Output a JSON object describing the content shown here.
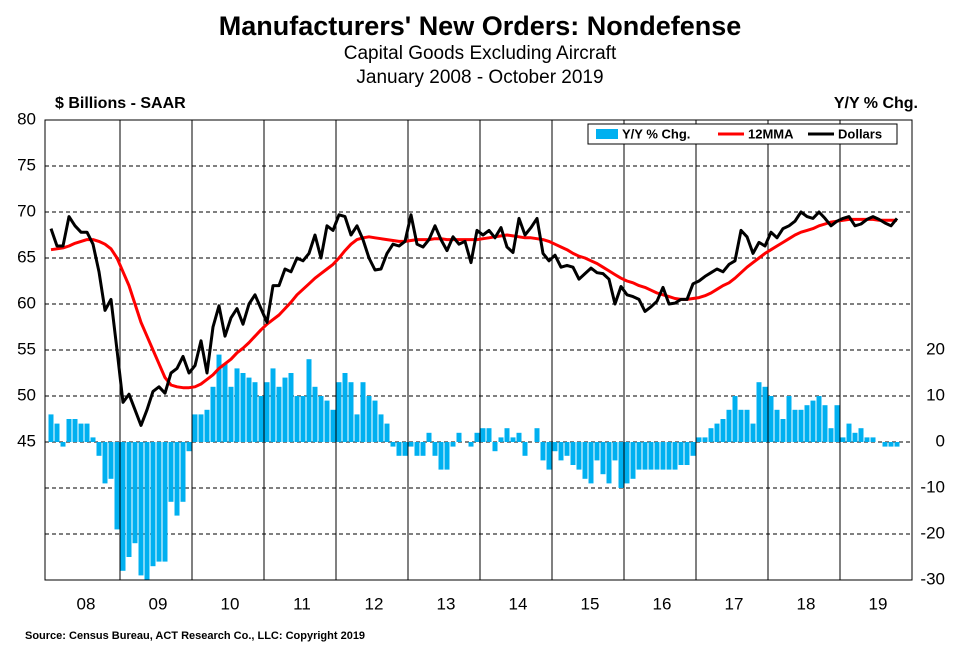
{
  "chart_data": {
    "type": "combo",
    "title": "Manufacturers' New Orders: Nondefense",
    "subtitle": "Capital Goods Excluding  Aircraft",
    "period": "January 2008 - October 2019",
    "ylabel": "$ Billions - SAAR",
    "y2label": "Y/Y % Chg.",
    "source": "Source: Census Bureau, ACT Research Co., LLC: Copyright 2019",
    "legend": "upper right",
    "grid": true,
    "ylim": [
      30,
      80
    ],
    "yticks": [
      45,
      50,
      55,
      60,
      65,
      70,
      75,
      80
    ],
    "y2lim": [
      -30,
      70
    ],
    "y2ticks": [
      -30,
      -20,
      -10,
      0,
      10,
      20
    ],
    "categories": [
      null,
      null,
      null,
      null,
      null,
      null,
      "08",
      null,
      null,
      null,
      null,
      null,
      null,
      null,
      null,
      null,
      null,
      null,
      "09",
      null,
      null,
      null,
      null,
      null,
      null,
      null,
      null,
      null,
      null,
      null,
      "10",
      null,
      null,
      null,
      null,
      null,
      null,
      null,
      null,
      null,
      null,
      null,
      "11",
      null,
      null,
      null,
      null,
      null,
      null,
      null,
      null,
      null,
      null,
      null,
      "12",
      null,
      null,
      null,
      null,
      null,
      null,
      null,
      null,
      null,
      null,
      null,
      "13",
      null,
      null,
      null,
      null,
      null,
      null,
      null,
      null,
      null,
      null,
      null,
      "14",
      null,
      null,
      null,
      null,
      null,
      null,
      null,
      null,
      null,
      null,
      null,
      "15",
      null,
      null,
      null,
      null,
      null,
      null,
      null,
      null,
      null,
      null,
      null,
      "16",
      null,
      null,
      null,
      null,
      null,
      null,
      null,
      null,
      null,
      null,
      null,
      "17",
      null,
      null,
      null,
      null,
      null,
      null,
      null,
      null,
      null,
      null,
      null,
      "18",
      null,
      null,
      null,
      null,
      null,
      null,
      null,
      null,
      null,
      null,
      null,
      "19",
      null,
      null,
      null
    ],
    "series": [
      {
        "name": "Y/Y % Chg.",
        "type": "bar",
        "axis": "y2",
        "color": "#00b0f0",
        "values": [
          6,
          4,
          -1,
          5,
          5,
          4,
          4,
          1,
          -3,
          -9,
          -8,
          -19,
          -28,
          -25,
          -22,
          -29,
          -30,
          -27,
          -26,
          -26,
          -13,
          -16,
          -13,
          -2,
          6,
          6,
          7,
          12,
          19,
          17,
          12,
          16,
          15,
          14,
          13,
          10,
          13,
          16,
          12,
          14,
          15,
          10,
          10,
          18,
          12,
          10,
          9,
          7,
          13,
          15,
          13,
          6,
          13,
          10,
          9,
          6,
          4,
          -1,
          -3,
          -3,
          -1,
          -3,
          -3,
          2,
          -3,
          -6,
          -6,
          -1,
          2,
          0,
          -1,
          2,
          3,
          3,
          -2,
          1,
          3,
          1,
          2,
          -3,
          0,
          3,
          -4,
          -6,
          -2,
          -4,
          -3,
          -5,
          -6,
          -8,
          -9,
          -4,
          -7,
          -9,
          -4,
          -10,
          -9,
          -8,
          -6,
          -6,
          -6,
          -6,
          -6,
          -6,
          -6,
          -5,
          -5,
          -3,
          1,
          1,
          3,
          4,
          5,
          7,
          10,
          7,
          7,
          4,
          13,
          12,
          10,
          7,
          5,
          10,
          7,
          7,
          8,
          9,
          10,
          8,
          3,
          8,
          1,
          4,
          2,
          3,
          1,
          1,
          0,
          -1,
          -1,
          -1
        ]
      },
      {
        "name": "12MMA",
        "type": "line",
        "color": "#ff0000",
        "values": [
          65.9,
          66,
          66.1,
          66.3,
          66.6,
          66.8,
          67,
          67,
          66.8,
          66.5,
          66,
          65,
          63.5,
          62,
          60,
          58,
          56.5,
          55,
          53.5,
          52,
          51.2,
          51,
          50.9,
          50.9,
          51,
          51.3,
          51.8,
          52.3,
          53,
          53.5,
          54,
          54.7,
          55.2,
          55.8,
          56.5,
          57.2,
          57.8,
          58.3,
          58.8,
          59.5,
          60.2,
          61,
          61.6,
          62.2,
          62.8,
          63.3,
          63.8,
          64.3,
          65,
          65.8,
          66.5,
          67,
          67.2,
          67.3,
          67.2,
          67.1,
          67,
          66.9,
          66.8,
          66.8,
          66.9,
          67,
          67,
          67,
          67.1,
          67.1,
          67,
          67,
          67,
          67,
          67,
          67,
          67.1,
          67.2,
          67.3,
          67.4,
          67.5,
          67.4,
          67.3,
          67.2,
          67.2,
          67.1,
          67,
          66.8,
          66.5,
          66.2,
          65.9,
          65.5,
          65.2,
          65,
          64.7,
          64.4,
          64,
          63.6,
          63.2,
          62.8,
          62.5,
          62.3,
          62,
          61.8,
          61.5,
          61.2,
          61,
          60.8,
          60.6,
          60.5,
          60.5,
          60.6,
          60.7,
          60.9,
          61.2,
          61.6,
          62,
          62.3,
          62.8,
          63.4,
          64,
          64.5,
          65,
          65.5,
          65.9,
          66.3,
          66.7,
          67.1,
          67.5,
          67.8,
          68,
          68.2,
          68.5,
          68.7,
          68.9,
          69,
          69.1,
          69.2,
          69.2,
          69.2,
          69.2,
          69.2,
          69.1,
          69.1,
          69.1,
          69.1
        ]
      },
      {
        "name": "Dollars",
        "type": "line",
        "color": "#000000",
        "values": [
          68.2,
          66.3,
          66.3,
          69.5,
          68.5,
          67.8,
          67.8,
          66.5,
          63.5,
          59.3,
          60.5,
          55,
          49.3,
          50.2,
          48.5,
          46.8,
          48.5,
          50.5,
          51,
          50.3,
          52.5,
          53,
          54.3,
          52.5,
          53.3,
          56,
          52.5,
          57.5,
          59.8,
          56.5,
          58.5,
          59.5,
          57.8,
          60,
          61,
          59.5,
          58,
          62,
          62,
          63.8,
          63.5,
          65,
          64.7,
          65.5,
          67.5,
          65,
          68.5,
          68,
          69.7,
          69.5,
          67.5,
          68.5,
          67,
          65,
          63.7,
          63.8,
          65.5,
          66.5,
          66.3,
          66.8,
          69.7,
          66.5,
          66.2,
          67,
          68.5,
          67,
          65.8,
          67.3,
          66.5,
          66.8,
          64.5,
          68,
          67.5,
          68,
          67.2,
          68.3,
          66.2,
          65.6,
          69.3,
          67.5,
          68.3,
          69.3,
          65.5,
          64.7,
          65.3,
          64,
          64.2,
          64,
          62.7,
          63.3,
          63.9,
          63.4,
          63.3,
          62.7,
          60,
          61.9,
          61,
          60.8,
          60.5,
          59.2,
          59.7,
          60.3,
          61.8,
          60,
          60.1,
          60.5,
          60.5,
          62.2,
          62.5,
          63,
          63.4,
          63.8,
          63.5,
          64.3,
          64.7,
          68,
          67.3,
          65.5,
          66.7,
          66.3,
          67.8,
          67.2,
          68.2,
          68.5,
          69,
          70,
          69.5,
          69.3,
          70,
          69.3,
          68.5,
          69,
          69.3,
          69.5,
          68.5,
          68.7,
          69.2,
          69.5,
          69.2,
          68.8,
          68.5,
          69.3
        ]
      }
    ]
  }
}
